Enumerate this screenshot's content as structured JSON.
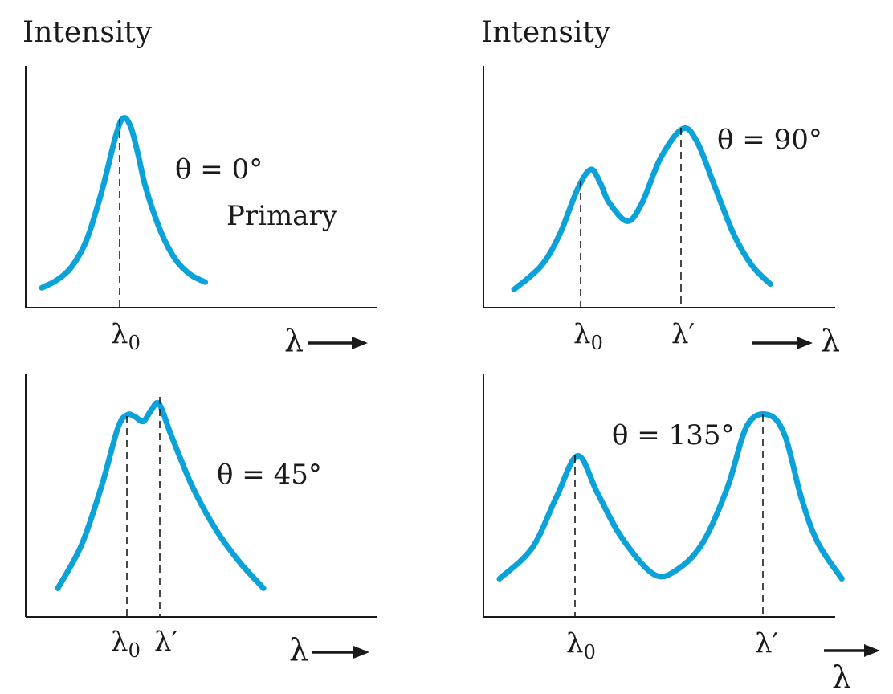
{
  "colors": {
    "curve": "#0aa2d8",
    "ink": "#1a1a1a"
  },
  "x_arrow_label": "λ",
  "chart_data": [
    {
      "type": "line",
      "ylabel": "Intensity",
      "annotation_theta": "θ = 0°",
      "annotation_note": "Primary",
      "ticks": [
        {
          "base": "λ",
          "sub": "0"
        }
      ],
      "x": [
        0,
        10,
        20,
        30,
        40,
        50,
        55,
        60,
        65,
        70,
        80,
        90,
        100,
        110
      ],
      "y": [
        5,
        9,
        16,
        30,
        55,
        86,
        95,
        90,
        75,
        58,
        35,
        20,
        12,
        8
      ]
    },
    {
      "type": "line",
      "ylabel": "Intensity",
      "annotation_theta": "θ = 90°",
      "ticks": [
        {
          "base": "λ",
          "sub": "0"
        },
        {
          "base": "λ′",
          "sub": ""
        }
      ],
      "x": [
        0,
        15,
        25,
        35,
        42,
        47,
        52,
        62,
        70,
        80,
        92,
        100,
        110,
        120,
        130,
        140
      ],
      "y": [
        5,
        18,
        35,
        60,
        70,
        63,
        52,
        42,
        52,
        76,
        92,
        85,
        60,
        35,
        18,
        8
      ]
    },
    {
      "type": "line",
      "annotation_theta": "θ = 45°",
      "ticks": [
        {
          "base": "λ",
          "sub": "0"
        },
        {
          "base": "λ′",
          "sub": ""
        }
      ],
      "x": [
        0,
        15,
        28,
        38,
        44,
        49,
        54,
        59,
        64,
        72,
        85,
        100,
        115,
        130
      ],
      "y": [
        8,
        28,
        56,
        82,
        88,
        87,
        85,
        90,
        93,
        78,
        55,
        35,
        20,
        8
      ]
    },
    {
      "type": "line",
      "annotation_theta": "θ = 135°",
      "ticks": [
        {
          "base": "λ",
          "sub": "0"
        },
        {
          "base": "λ′",
          "sub": ""
        }
      ],
      "x": [
        0,
        20,
        35,
        48,
        60,
        75,
        95,
        110,
        125,
        140,
        152,
        165,
        175,
        185,
        195,
        210
      ],
      "y": [
        10,
        25,
        50,
        70,
        52,
        30,
        12,
        15,
        28,
        55,
        85,
        90,
        80,
        50,
        28,
        10
      ]
    }
  ]
}
